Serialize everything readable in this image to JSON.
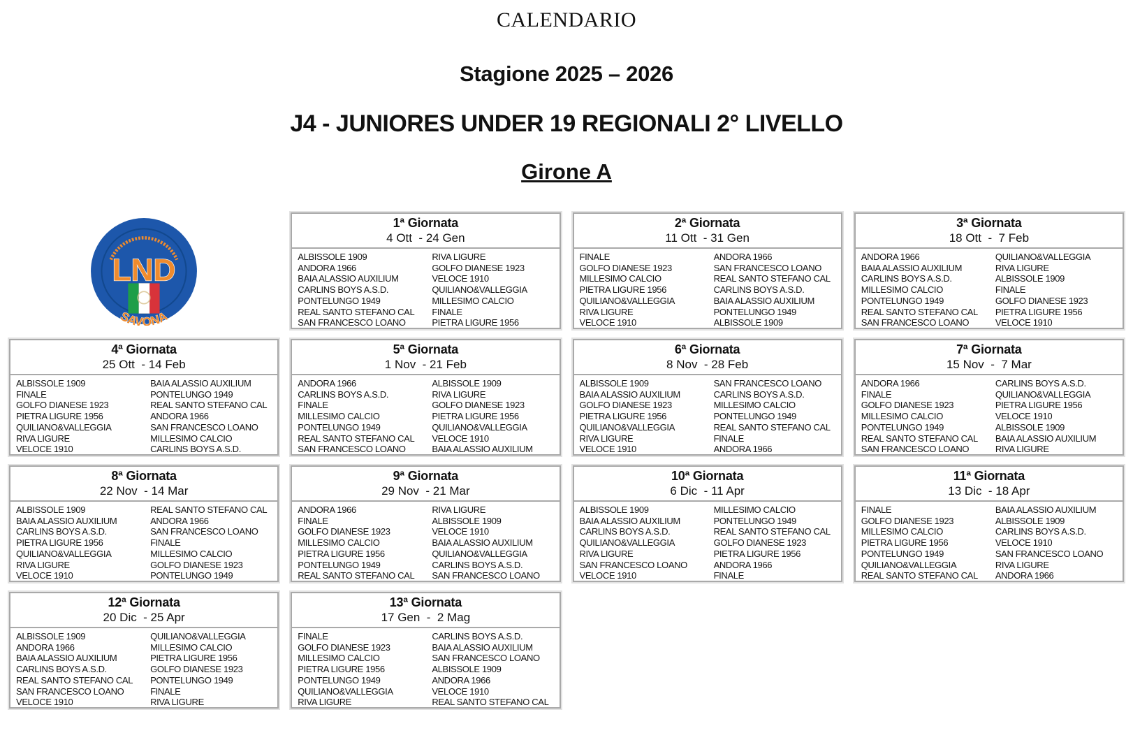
{
  "page": {
    "title": "CALENDARIO",
    "season": "Stagione 2025 – 2026",
    "competition": "J4 - JUNIORES UNDER 19 REGIONALI 2° LIVELLO",
    "group": "Girone A"
  },
  "logo": {
    "acronym": "LND",
    "location": "SAVONA",
    "circle_color": "#1d57ab",
    "accent_color": "#ef8b2e",
    "flag_green": "#1e9e48",
    "flag_white": "#ffffff",
    "flag_red": "#d8333a"
  },
  "rounds": [
    {
      "title": "1ª Giornata",
      "dates": "4 Ott  - 24 Gen",
      "matches": [
        {
          "home": "ALBISSOLE 1909",
          "away": "RIVA LIGURE"
        },
        {
          "home": "ANDORA 1966",
          "away": "GOLFO DIANESE 1923"
        },
        {
          "home": "BAIA ALASSIO AUXILIUM",
          "away": "VELOCE 1910"
        },
        {
          "home": "CARLINS BOYS A.S.D.",
          "away": "QUILIANO&VALLEGGIA"
        },
        {
          "home": "PONTELUNGO 1949",
          "away": "MILLESIMO CALCIO"
        },
        {
          "home": "REAL SANTO STEFANO CAL",
          "away": "FINALE"
        },
        {
          "home": "SAN FRANCESCO LOANO",
          "away": "PIETRA LIGURE 1956"
        }
      ]
    },
    {
      "title": "2ª Giornata",
      "dates": "11 Ott  - 31 Gen",
      "matches": [
        {
          "home": "FINALE",
          "away": "ANDORA 1966"
        },
        {
          "home": "GOLFO DIANESE 1923",
          "away": "SAN FRANCESCO LOANO"
        },
        {
          "home": "MILLESIMO CALCIO",
          "away": "REAL SANTO STEFANO CAL"
        },
        {
          "home": "PIETRA LIGURE 1956",
          "away": "CARLINS BOYS A.S.D."
        },
        {
          "home": "QUILIANO&VALLEGGIA",
          "away": "BAIA ALASSIO AUXILIUM"
        },
        {
          "home": "RIVA LIGURE",
          "away": "PONTELUNGO 1949"
        },
        {
          "home": "VELOCE 1910",
          "away": "ALBISSOLE 1909"
        }
      ]
    },
    {
      "title": "3ª Giornata",
      "dates": "18 Ott  -  7 Feb",
      "matches": [
        {
          "home": "ANDORA 1966",
          "away": "QUILIANO&VALLEGGIA"
        },
        {
          "home": "BAIA ALASSIO AUXILIUM",
          "away": "RIVA LIGURE"
        },
        {
          "home": "CARLINS BOYS A.S.D.",
          "away": "ALBISSOLE 1909"
        },
        {
          "home": "MILLESIMO CALCIO",
          "away": "FINALE"
        },
        {
          "home": "PONTELUNGO 1949",
          "away": "GOLFO DIANESE 1923"
        },
        {
          "home": "REAL SANTO STEFANO CAL",
          "away": "PIETRA LIGURE 1956"
        },
        {
          "home": "SAN FRANCESCO LOANO",
          "away": "VELOCE 1910"
        }
      ]
    },
    {
      "title": "4ª Giornata",
      "dates": "25 Ott  - 14 Feb",
      "matches": [
        {
          "home": "ALBISSOLE 1909",
          "away": "BAIA ALASSIO AUXILIUM"
        },
        {
          "home": "FINALE",
          "away": "PONTELUNGO 1949"
        },
        {
          "home": "GOLFO DIANESE 1923",
          "away": "REAL SANTO STEFANO CAL"
        },
        {
          "home": "PIETRA LIGURE 1956",
          "away": "ANDORA 1966"
        },
        {
          "home": "QUILIANO&VALLEGGIA",
          "away": "SAN FRANCESCO LOANO"
        },
        {
          "home": "RIVA LIGURE",
          "away": "MILLESIMO CALCIO"
        },
        {
          "home": "VELOCE 1910",
          "away": "CARLINS BOYS A.S.D."
        }
      ]
    },
    {
      "title": "5ª Giornata",
      "dates": "1 Nov  - 21 Feb",
      "matches": [
        {
          "home": "ANDORA 1966",
          "away": "ALBISSOLE 1909"
        },
        {
          "home": "CARLINS BOYS A.S.D.",
          "away": "RIVA LIGURE"
        },
        {
          "home": "FINALE",
          "away": "GOLFO DIANESE 1923"
        },
        {
          "home": "MILLESIMO CALCIO",
          "away": "PIETRA LIGURE 1956"
        },
        {
          "home": "PONTELUNGO 1949",
          "away": "QUILIANO&VALLEGGIA"
        },
        {
          "home": "REAL SANTO STEFANO CAL",
          "away": "VELOCE 1910"
        },
        {
          "home": "SAN FRANCESCO LOANO",
          "away": "BAIA ALASSIO AUXILIUM"
        }
      ]
    },
    {
      "title": "6ª Giornata",
      "dates": "8 Nov  - 28 Feb",
      "matches": [
        {
          "home": "ALBISSOLE 1909",
          "away": "SAN FRANCESCO LOANO"
        },
        {
          "home": "BAIA ALASSIO AUXILIUM",
          "away": "CARLINS BOYS A.S.D."
        },
        {
          "home": "GOLFO DIANESE 1923",
          "away": "MILLESIMO CALCIO"
        },
        {
          "home": "PIETRA LIGURE 1956",
          "away": "PONTELUNGO 1949"
        },
        {
          "home": "QUILIANO&VALLEGGIA",
          "away": "REAL SANTO STEFANO CAL"
        },
        {
          "home": "RIVA LIGURE",
          "away": "FINALE"
        },
        {
          "home": "VELOCE 1910",
          "away": "ANDORA 1966"
        }
      ]
    },
    {
      "title": "7ª Giornata",
      "dates": "15 Nov  -  7 Mar",
      "matches": [
        {
          "home": "ANDORA 1966",
          "away": "CARLINS BOYS A.S.D."
        },
        {
          "home": "FINALE",
          "away": "QUILIANO&VALLEGGIA"
        },
        {
          "home": "GOLFO DIANESE 1923",
          "away": "PIETRA LIGURE 1956"
        },
        {
          "home": "MILLESIMO CALCIO",
          "away": "VELOCE 1910"
        },
        {
          "home": "PONTELUNGO 1949",
          "away": "ALBISSOLE 1909"
        },
        {
          "home": "REAL SANTO STEFANO CAL",
          "away": "BAIA ALASSIO AUXILIUM"
        },
        {
          "home": "SAN FRANCESCO LOANO",
          "away": "RIVA LIGURE"
        }
      ]
    },
    {
      "title": "8ª Giornata",
      "dates": "22 Nov  - 14 Mar",
      "matches": [
        {
          "home": "ALBISSOLE 1909",
          "away": "REAL SANTO STEFANO CAL"
        },
        {
          "home": "BAIA ALASSIO AUXILIUM",
          "away": "ANDORA 1966"
        },
        {
          "home": "CARLINS BOYS A.S.D.",
          "away": "SAN FRANCESCO LOANO"
        },
        {
          "home": "PIETRA LIGURE 1956",
          "away": "FINALE"
        },
        {
          "home": "QUILIANO&VALLEGGIA",
          "away": "MILLESIMO CALCIO"
        },
        {
          "home": "RIVA LIGURE",
          "away": "GOLFO DIANESE 1923"
        },
        {
          "home": "VELOCE 1910",
          "away": "PONTELUNGO 1949"
        }
      ]
    },
    {
      "title": "9ª Giornata",
      "dates": "29 Nov  - 21 Mar",
      "matches": [
        {
          "home": "ANDORA 1966",
          "away": "RIVA LIGURE"
        },
        {
          "home": "FINALE",
          "away": "ALBISSOLE 1909"
        },
        {
          "home": "GOLFO DIANESE 1923",
          "away": "VELOCE 1910"
        },
        {
          "home": "MILLESIMO CALCIO",
          "away": "BAIA ALASSIO AUXILIUM"
        },
        {
          "home": "PIETRA LIGURE 1956",
          "away": "QUILIANO&VALLEGGIA"
        },
        {
          "home": "PONTELUNGO 1949",
          "away": "CARLINS BOYS A.S.D."
        },
        {
          "home": "REAL SANTO STEFANO CAL",
          "away": "SAN FRANCESCO LOANO"
        }
      ]
    },
    {
      "title": "10ª Giornata",
      "dates": "6 Dic  - 11 Apr",
      "matches": [
        {
          "home": "ALBISSOLE 1909",
          "away": "MILLESIMO CALCIO"
        },
        {
          "home": "BAIA ALASSIO AUXILIUM",
          "away": "PONTELUNGO 1949"
        },
        {
          "home": "CARLINS BOYS A.S.D.",
          "away": "REAL SANTO STEFANO CAL"
        },
        {
          "home": "QUILIANO&VALLEGGIA",
          "away": "GOLFO DIANESE 1923"
        },
        {
          "home": "RIVA LIGURE",
          "away": "PIETRA LIGURE 1956"
        },
        {
          "home": "SAN FRANCESCO LOANO",
          "away": "ANDORA 1966"
        },
        {
          "home": "VELOCE 1910",
          "away": "FINALE"
        }
      ]
    },
    {
      "title": "11ª Giornata",
      "dates": "13 Dic  - 18 Apr",
      "matches": [
        {
          "home": "FINALE",
          "away": "BAIA ALASSIO AUXILIUM"
        },
        {
          "home": "GOLFO DIANESE 1923",
          "away": "ALBISSOLE 1909"
        },
        {
          "home": "MILLESIMO CALCIO",
          "away": "CARLINS BOYS A.S.D."
        },
        {
          "home": "PIETRA LIGURE 1956",
          "away": "VELOCE 1910"
        },
        {
          "home": "PONTELUNGO 1949",
          "away": "SAN FRANCESCO LOANO"
        },
        {
          "home": "QUILIANO&VALLEGGIA",
          "away": "RIVA LIGURE"
        },
        {
          "home": "REAL SANTO STEFANO CAL",
          "away": "ANDORA 1966"
        }
      ]
    },
    {
      "title": "12ª Giornata",
      "dates": "20 Dic  - 25 Apr",
      "matches": [
        {
          "home": "ALBISSOLE 1909",
          "away": "QUILIANO&VALLEGGIA"
        },
        {
          "home": "ANDORA 1966",
          "away": "MILLESIMO CALCIO"
        },
        {
          "home": "BAIA ALASSIO AUXILIUM",
          "away": "PIETRA LIGURE 1956"
        },
        {
          "home": "CARLINS BOYS A.S.D.",
          "away": "GOLFO DIANESE 1923"
        },
        {
          "home": "REAL SANTO STEFANO CAL",
          "away": "PONTELUNGO 1949"
        },
        {
          "home": "SAN FRANCESCO LOANO",
          "away": "FINALE"
        },
        {
          "home": "VELOCE 1910",
          "away": "RIVA LIGURE"
        }
      ]
    },
    {
      "title": "13ª Giornata",
      "dates": "17 Gen  -  2 Mag",
      "matches": [
        {
          "home": "FINALE",
          "away": "CARLINS BOYS A.S.D."
        },
        {
          "home": "GOLFO DIANESE 1923",
          "away": "BAIA ALASSIO AUXILIUM"
        },
        {
          "home": "MILLESIMO CALCIO",
          "away": "SAN FRANCESCO LOANO"
        },
        {
          "home": "PIETRA LIGURE 1956",
          "away": "ALBISSOLE 1909"
        },
        {
          "home": "PONTELUNGO 1949",
          "away": "ANDORA 1966"
        },
        {
          "home": "QUILIANO&VALLEGGIA",
          "away": "VELOCE 1910"
        },
        {
          "home": "RIVA LIGURE",
          "away": "REAL SANTO STEFANO CAL"
        }
      ]
    }
  ]
}
